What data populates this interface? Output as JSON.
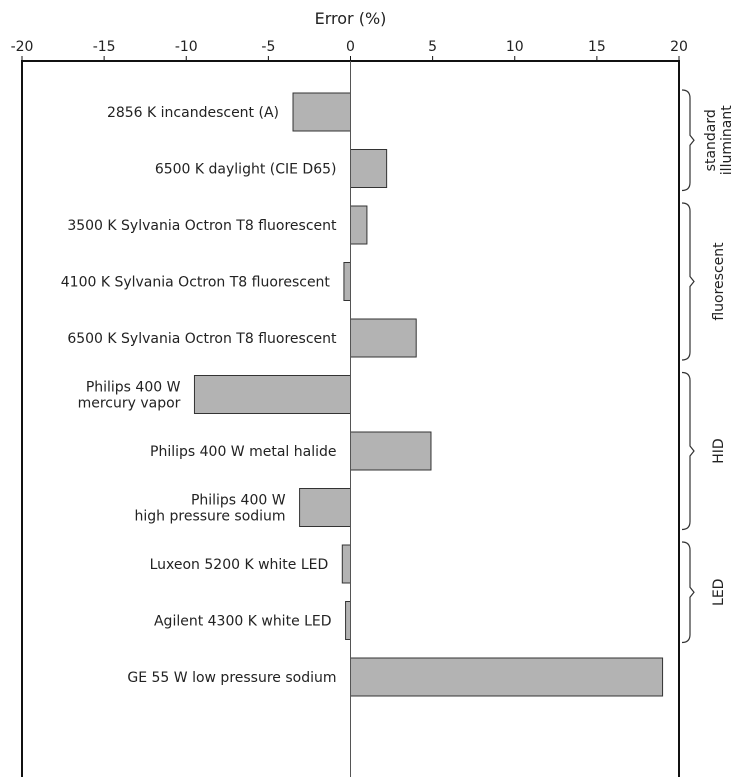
{
  "chart_data": {
    "type": "bar",
    "orientation": "horizontal",
    "title": "",
    "xlabel": "Error (%)",
    "ylabel": "",
    "xlim": [
      -20,
      20
    ],
    "xticks": [
      -20,
      -15,
      -10,
      -5,
      0,
      5,
      10,
      15,
      20
    ],
    "x_axis_position": "top",
    "grid": false,
    "bar_color": "#b3b3b3",
    "bar_edge_color": "#333333",
    "categories": [
      [
        "2856 K incandescent (A)"
      ],
      [
        "6500 K daylight (CIE D65)"
      ],
      [
        "3500 K Sylvania Octron T8 fluorescent"
      ],
      [
        "4100 K Sylvania Octron T8 fluorescent"
      ],
      [
        "6500 K Sylvania Octron T8 fluorescent"
      ],
      [
        "Philips 400 W",
        "mercury vapor"
      ],
      [
        "Philips 400 W metal halide"
      ],
      [
        "Philips 400 W",
        "high pressure sodium"
      ],
      [
        "Luxeon 5200 K white LED"
      ],
      [
        "Agilent 4300 K white LED"
      ],
      [
        "GE 55 W low pressure sodium"
      ]
    ],
    "values": [
      -3.5,
      2.2,
      1.0,
      -0.4,
      4.0,
      -9.5,
      4.9,
      -3.1,
      -0.5,
      -0.3,
      19.0
    ],
    "groups": [
      {
        "label": [
          "standard",
          "illuminant"
        ],
        "first": 0,
        "last": 1
      },
      {
        "label": [
          "fluorescent"
        ],
        "first": 2,
        "last": 4
      },
      {
        "label": [
          "HID"
        ],
        "first": 5,
        "last": 7
      },
      {
        "label": [
          "LED"
        ],
        "first": 8,
        "last": 9
      }
    ]
  }
}
